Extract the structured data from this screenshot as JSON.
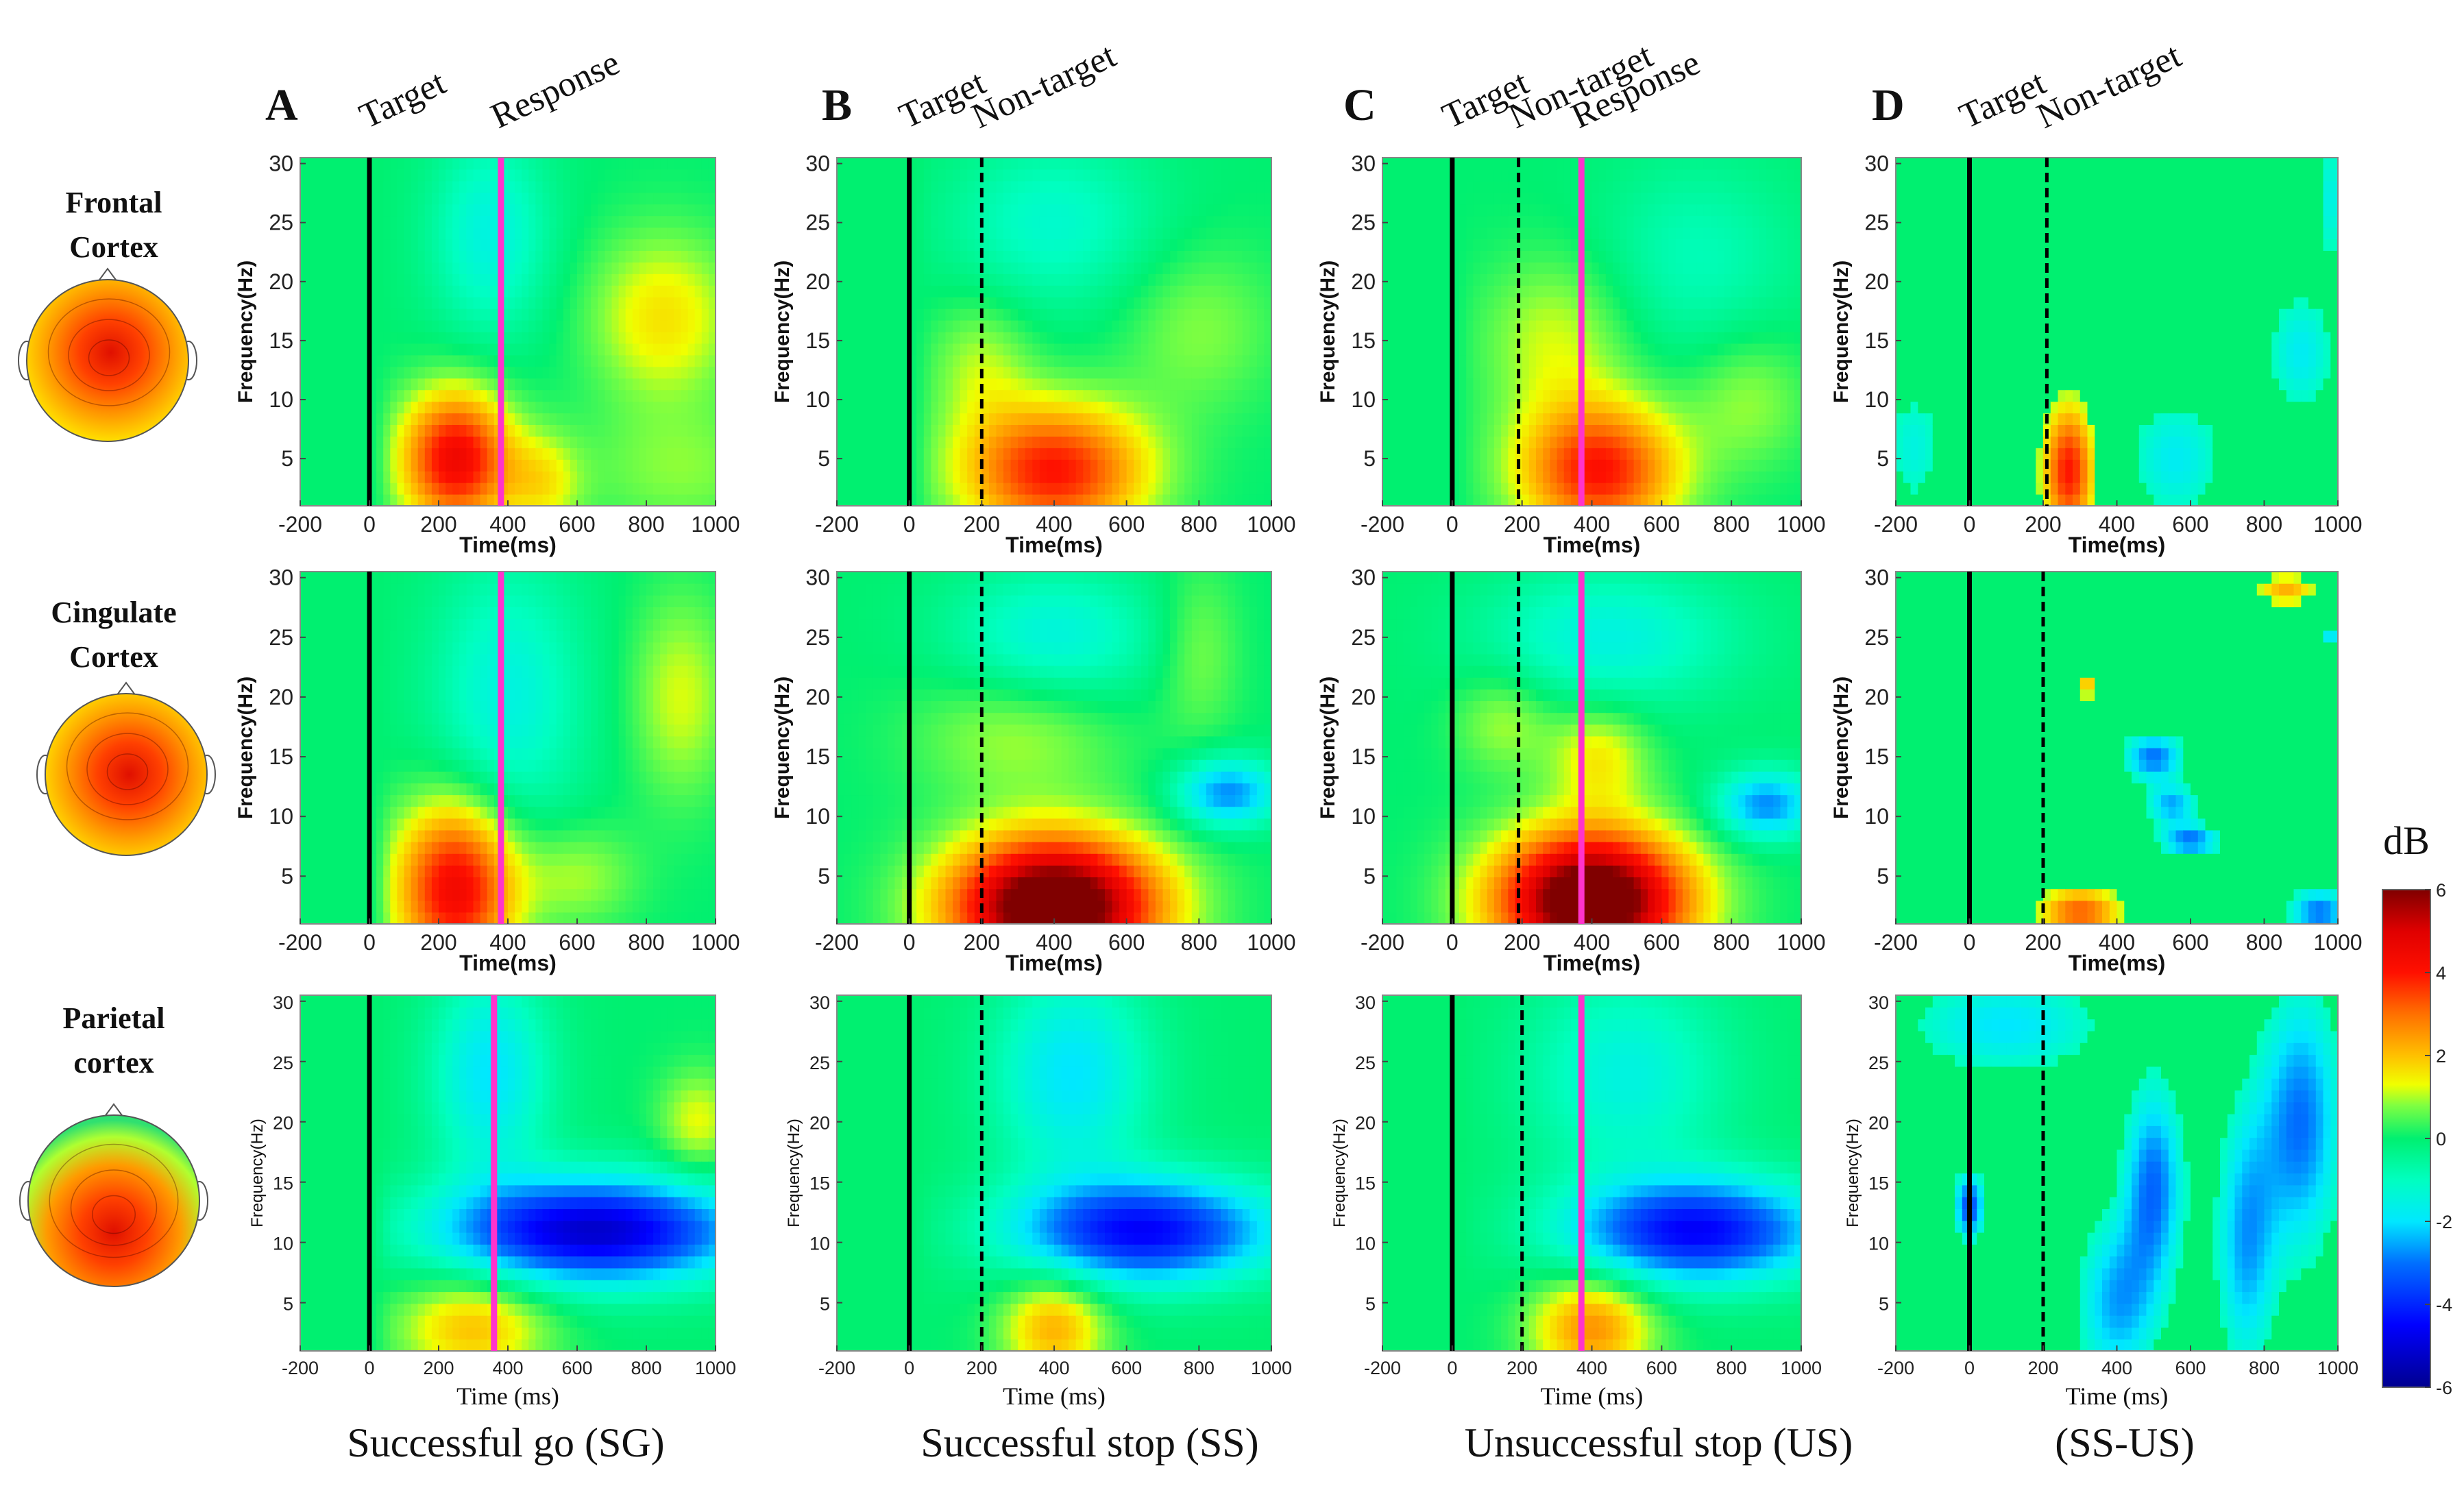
{
  "figure": {
    "column_letters": [
      "A",
      "B",
      "C",
      "D"
    ],
    "column_events": [
      [
        "Target",
        "Response"
      ],
      [
        "Target",
        "Non-target"
      ],
      [
        "Target",
        "Non-target",
        "Response"
      ],
      [
        "Target",
        "Non-target"
      ]
    ],
    "row_labels": [
      [
        "Frontal",
        "Cortex"
      ],
      [
        "Cingulate",
        "Cortex"
      ],
      [
        "Parietal",
        "cortex"
      ]
    ],
    "condition_labels": [
      "Successful go (SG)",
      "Successful stop (SS)",
      "Unsuccessful stop (US)",
      "(SS-US)"
    ],
    "colorbar": {
      "title": "dB",
      "range": [
        -6,
        6
      ],
      "ticks": [
        "6",
        "4",
        "2",
        "0",
        "-2",
        "-4",
        "-6"
      ],
      "colormap": "jet",
      "stops": [
        [
          -6,
          "#00008f"
        ],
        [
          -4.5,
          "#0000ff"
        ],
        [
          -3,
          "#0070ff"
        ],
        [
          -2,
          "#00e8ff"
        ],
        [
          -1,
          "#00ffc0"
        ],
        [
          0,
          "#00f070"
        ],
        [
          0.8,
          "#80ff40"
        ],
        [
          1.3,
          "#f0ff00"
        ],
        [
          2,
          "#ffc000"
        ],
        [
          3,
          "#ff7000"
        ],
        [
          4,
          "#ff1000"
        ],
        [
          5,
          "#e00000"
        ],
        [
          6,
          "#800000"
        ]
      ]
    },
    "colors": {
      "target_line": "#000000",
      "nontarget_line": "#000000",
      "response_line": "#ff33cc"
    }
  },
  "axes": {
    "xticks": [
      "-200",
      "0",
      "200",
      "400",
      "600",
      "800",
      "1000"
    ],
    "yticks": [
      "5",
      "10",
      "15",
      "20",
      "25",
      "30"
    ],
    "xlabel_bold": "Time(ms)",
    "xlabel_serif": "Time (ms)",
    "ylabel": "Frequency(Hz)",
    "xlim": [
      -200,
      1000
    ],
    "ylim": [
      1,
      30.5
    ]
  },
  "chart_data": [
    {
      "type": "heatmap",
      "region": "Frontal",
      "condition": "SG",
      "baseline_masked": true,
      "threshold": 0,
      "events": [
        {
          "label": "Target",
          "time": 0,
          "style": "solid"
        },
        {
          "label": "Response",
          "time": 380,
          "style": "magenta"
        }
      ],
      "components": [
        {
          "t": 250,
          "f": 5,
          "st": 110,
          "sf": 4,
          "db": 4.5
        },
        {
          "t": 350,
          "f": 24,
          "st": 120,
          "sf": 6,
          "db": -1.5
        },
        {
          "t": 850,
          "f": 17,
          "st": 150,
          "sf": 5,
          "db": 1.6
        },
        {
          "t": 500,
          "f": 3,
          "st": 80,
          "sf": 3,
          "db": 1.4
        },
        {
          "t": 900,
          "f": 4,
          "st": 200,
          "sf": 4,
          "db": 0.8
        }
      ]
    },
    {
      "type": "heatmap",
      "region": "Frontal",
      "condition": "SS",
      "baseline_masked": true,
      "threshold": 0,
      "events": [
        {
          "label": "Target",
          "time": 0,
          "style": "solid"
        },
        {
          "label": "Non-target",
          "time": 200,
          "style": "dashed"
        }
      ],
      "components": [
        {
          "t": 400,
          "f": 4,
          "st": 180,
          "sf": 4,
          "db": 4
        },
        {
          "t": 400,
          "f": 25,
          "st": 200,
          "sf": 5,
          "db": -1.2
        },
        {
          "t": 200,
          "f": 13,
          "st": 100,
          "sf": 4,
          "db": 1
        },
        {
          "t": 800,
          "f": 16,
          "st": 150,
          "sf": 5,
          "db": 0.8
        }
      ]
    },
    {
      "type": "heatmap",
      "region": "Frontal",
      "condition": "US",
      "baseline_masked": true,
      "threshold": 0,
      "events": [
        {
          "label": "Target",
          "time": 0,
          "style": "solid"
        },
        {
          "label": "Non-target",
          "time": 190,
          "style": "dashed"
        },
        {
          "label": "Response",
          "time": 370,
          "style": "magenta"
        }
      ],
      "components": [
        {
          "t": 420,
          "f": 4,
          "st": 160,
          "sf": 4,
          "db": 4
        },
        {
          "t": 300,
          "f": 15,
          "st": 150,
          "sf": 5,
          "db": 1.2
        },
        {
          "t": 700,
          "f": 22,
          "st": 200,
          "sf": 6,
          "db": -0.9
        },
        {
          "t": 850,
          "f": 10,
          "st": 120,
          "sf": 4,
          "db": 0.9
        }
      ]
    },
    {
      "type": "heatmap",
      "region": "Frontal",
      "condition": "SS-US",
      "baseline_masked": false,
      "threshold": 1,
      "events": [
        {
          "label": "Target",
          "time": 0,
          "style": "solid"
        },
        {
          "label": "Non-target",
          "time": 210,
          "style": "dashed"
        }
      ],
      "components": [
        {
          "t": 270,
          "f": 4,
          "st": 50,
          "sf": 4,
          "db": 4
        },
        {
          "t": 560,
          "f": 5,
          "st": 100,
          "sf": 4,
          "db": -1.8
        },
        {
          "t": 900,
          "f": 14,
          "st": 70,
          "sf": 4,
          "db": -1.8
        },
        {
          "t": -150,
          "f": 6,
          "st": 60,
          "sf": 4,
          "db": -1.5
        },
        {
          "t": 980,
          "f": 27,
          "st": 30,
          "sf": 4,
          "db": -1.6
        }
      ]
    },
    {
      "type": "heatmap",
      "region": "Cingulate",
      "condition": "SG",
      "baseline_masked": true,
      "threshold": 0,
      "events": [
        {
          "label": "Target",
          "time": 0,
          "style": "solid"
        },
        {
          "label": "Response",
          "time": 380,
          "style": "magenta"
        }
      ],
      "components": [
        {
          "t": 250,
          "f": 4,
          "st": 120,
          "sf": 5,
          "db": 4.5
        },
        {
          "t": 400,
          "f": 20,
          "st": 150,
          "sf": 8,
          "db": -1.5
        },
        {
          "t": 900,
          "f": 20,
          "st": 100,
          "sf": 6,
          "db": 1.2
        },
        {
          "t": 600,
          "f": 5,
          "st": 120,
          "sf": 3,
          "db": 1
        }
      ]
    },
    {
      "type": "heatmap",
      "region": "Cingulate",
      "condition": "SS",
      "baseline_masked": false,
      "threshold": 0,
      "events": [
        {
          "label": "Target",
          "time": 0,
          "style": "solid"
        },
        {
          "label": "Non-target",
          "time": 200,
          "style": "dashed"
        }
      ],
      "components": [
        {
          "t": 400,
          "f": 2.5,
          "st": 200,
          "sf": 4,
          "db": 7.5
        },
        {
          "t": 880,
          "f": 12,
          "st": 100,
          "sf": 2,
          "db": -2.8
        },
        {
          "t": 400,
          "f": 25,
          "st": 200,
          "sf": 4,
          "db": -1.5
        },
        {
          "t": 300,
          "f": 17,
          "st": 200,
          "sf": 4,
          "db": 1
        },
        {
          "t": 800,
          "f": 24,
          "st": 80,
          "sf": 5,
          "db": 0.8
        }
      ]
    },
    {
      "type": "heatmap",
      "region": "Cingulate",
      "condition": "US",
      "baseline_masked": false,
      "threshold": 0,
      "events": [
        {
          "label": "Target",
          "time": 0,
          "style": "solid"
        },
        {
          "label": "Non-target",
          "time": 190,
          "style": "dashed"
        },
        {
          "label": "Response",
          "time": 370,
          "style": "magenta"
        }
      ],
      "components": [
        {
          "t": 400,
          "f": 3,
          "st": 190,
          "sf": 4,
          "db": 7.5
        },
        {
          "t": 900,
          "f": 11,
          "st": 100,
          "sf": 2,
          "db": -2.8
        },
        {
          "t": 450,
          "f": 25,
          "st": 250,
          "sf": 4,
          "db": -1.5
        },
        {
          "t": 420,
          "f": 15,
          "st": 100,
          "sf": 3,
          "db": 1.5
        },
        {
          "t": 150,
          "f": 18,
          "st": 100,
          "sf": 3,
          "db": 1
        }
      ]
    },
    {
      "type": "heatmap",
      "region": "Cingulate",
      "condition": "SS-US",
      "baseline_masked": false,
      "threshold": 1,
      "events": [
        {
          "label": "Target",
          "time": 0,
          "style": "solid"
        },
        {
          "label": "Non-target",
          "time": 200,
          "style": "dashed"
        }
      ],
      "components": [
        {
          "t": 300,
          "f": 2,
          "st": 80,
          "sf": 1.5,
          "db": 3.2
        },
        {
          "t": 500,
          "f": 15,
          "st": 60,
          "sf": 1.5,
          "db": -3
        },
        {
          "t": 600,
          "f": 8,
          "st": 60,
          "sf": 1,
          "db": -3
        },
        {
          "t": 550,
          "f": 11,
          "st": 50,
          "sf": 1.2,
          "db": -2.5
        },
        {
          "t": 950,
          "f": 2,
          "st": 60,
          "sf": 1.5,
          "db": -3
        },
        {
          "t": 860,
          "f": 29,
          "st": 60,
          "sf": 1,
          "db": 2.2
        },
        {
          "t": 320,
          "f": 21,
          "st": 25,
          "sf": 0.8,
          "db": 2
        },
        {
          "t": 980,
          "f": 25,
          "st": 25,
          "sf": 0.8,
          "db": -2
        }
      ]
    },
    {
      "type": "heatmap",
      "region": "Parietal",
      "condition": "SG",
      "baseline_masked": true,
      "threshold": 0,
      "events": [
        {
          "label": "Target",
          "time": 0,
          "style": "solid"
        },
        {
          "label": "Response",
          "time": 360,
          "style": "magenta"
        }
      ],
      "components": [
        {
          "t": 650,
          "f": 11,
          "st": 300,
          "sf": 3,
          "db": -5.2
        },
        {
          "t": 350,
          "f": 24,
          "st": 120,
          "sf": 6,
          "db": -2
        },
        {
          "t": 300,
          "f": 3,
          "st": 150,
          "sf": 3,
          "db": 2
        },
        {
          "t": 950,
          "f": 20,
          "st": 80,
          "sf": 3,
          "db": 1.3
        }
      ]
    },
    {
      "type": "heatmap",
      "region": "Parietal",
      "condition": "SS",
      "baseline_masked": true,
      "threshold": 0,
      "events": [
        {
          "label": "Target",
          "time": 0,
          "style": "solid"
        },
        {
          "label": "Non-target",
          "time": 200,
          "style": "dashed"
        }
      ],
      "components": [
        {
          "t": 650,
          "f": 11,
          "st": 250,
          "sf": 3,
          "db": -4.5
        },
        {
          "t": 450,
          "f": 24,
          "st": 150,
          "sf": 6,
          "db": -2
        },
        {
          "t": 400,
          "f": 3,
          "st": 100,
          "sf": 3,
          "db": 2.2
        }
      ]
    },
    {
      "type": "heatmap",
      "region": "Parietal",
      "condition": "US",
      "baseline_masked": true,
      "threshold": 0,
      "events": [
        {
          "label": "Target",
          "time": 0,
          "style": "solid"
        },
        {
          "label": "Non-target",
          "time": 200,
          "style": "dashed"
        },
        {
          "label": "Response",
          "time": 370,
          "style": "magenta"
        }
      ],
      "components": [
        {
          "t": 700,
          "f": 11,
          "st": 250,
          "sf": 3,
          "db": -4.5
        },
        {
          "t": 400,
          "f": 3,
          "st": 120,
          "sf": 3,
          "db": 2.6
        },
        {
          "t": 500,
          "f": 24,
          "st": 200,
          "sf": 6,
          "db": -1.5
        }
      ]
    },
    {
      "type": "heatmap",
      "region": "Parietal",
      "condition": "SS-US",
      "baseline_masked": false,
      "threshold": 1,
      "events": [
        {
          "label": "Target",
          "time": 0,
          "style": "solid"
        },
        {
          "label": "Non-target",
          "time": 200,
          "style": "dashed"
        }
      ],
      "components": [
        {
          "t": 500,
          "f": 15,
          "st": 60,
          "sf": 6,
          "db": -3
        },
        {
          "t": 900,
          "f": 20,
          "st": 80,
          "sf": 8,
          "db": -3
        },
        {
          "t": 400,
          "f": 5,
          "st": 80,
          "sf": 5,
          "db": -2.5
        },
        {
          "t": 750,
          "f": 10,
          "st": 60,
          "sf": 8,
          "db": -2.5
        },
        {
          "t": 100,
          "f": 28,
          "st": 200,
          "sf": 3,
          "db": -2
        },
        {
          "t": 0,
          "f": 13,
          "st": 30,
          "sf": 2,
          "db": -3.5
        }
      ]
    }
  ]
}
